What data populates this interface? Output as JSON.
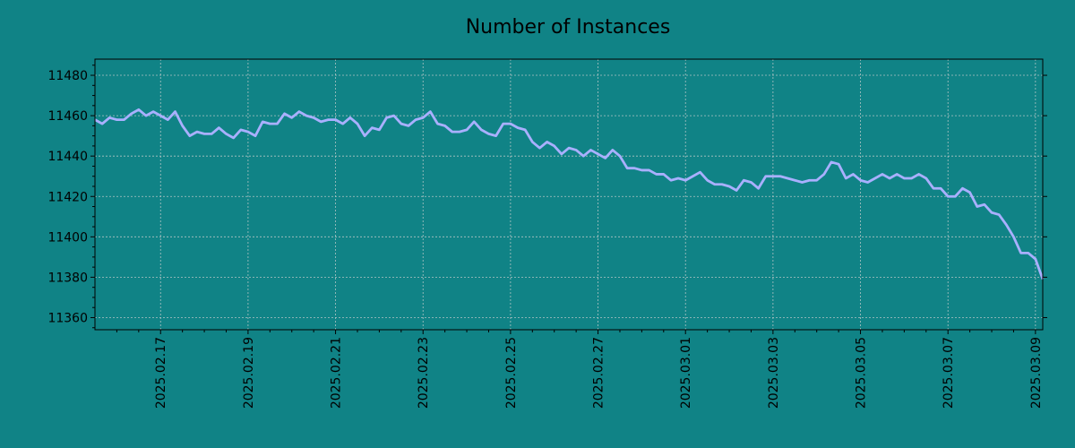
{
  "chart_data": {
    "type": "line",
    "title": "Number of Instances",
    "xlabel": "",
    "ylabel": "",
    "ylim": [
      11354,
      11488
    ],
    "yticks": [
      11360,
      11380,
      11400,
      11420,
      11440,
      11460,
      11480
    ],
    "xticks": [
      "2025.02.17",
      "2025.02.19",
      "2025.02.21",
      "2025.02.23",
      "2025.02.25",
      "2025.02.27",
      "2025.03.01",
      "2025.03.03",
      "2025.03.05",
      "2025.03.07",
      "2025.03.09"
    ],
    "grid": true,
    "x_start": "2025.02.15 12:00",
    "x_step_hours": 4,
    "series": [
      {
        "values": [
          11458,
          11456,
          11459,
          11458,
          11458,
          11461,
          11463,
          11460,
          11462,
          11460,
          11458,
          11462,
          11455,
          11450,
          11452,
          11451,
          11451,
          11454,
          11451,
          11449,
          11453,
          11452,
          11450,
          11457,
          11456,
          11456,
          11461,
          11459,
          11462,
          11460,
          11459,
          11457,
          11458,
          11458,
          11456,
          11459,
          11456,
          11450,
          11454,
          11453,
          11459,
          11460,
          11456,
          11455,
          11458,
          11459,
          11462,
          11456,
          11455,
          11452,
          11452,
          11453,
          11457,
          11453,
          11451,
          11450,
          11456,
          11456,
          11454,
          11453,
          11447,
          11444,
          11447,
          11445,
          11441,
          11444,
          11443,
          11440,
          11443,
          11441,
          11439,
          11443,
          11440,
          11434,
          11434,
          11433,
          11433,
          11431,
          11431,
          11428,
          11429,
          11428,
          11430,
          11432,
          11428,
          11426,
          11426,
          11425,
          11423,
          11428,
          11427,
          11424,
          11430,
          11430,
          11430,
          11429,
          11428,
          11427,
          11428,
          11428,
          11431,
          11437,
          11436,
          11429,
          11431,
          11428,
          11427,
          11429,
          11431,
          11429,
          11431,
          11429,
          11429,
          11431,
          11429,
          11424,
          11424,
          11420,
          11420,
          11424,
          11422,
          11415,
          11416,
          11412,
          11411,
          11406,
          11400,
          11392,
          11392,
          11389,
          11379
        ]
      }
    ]
  },
  "colors": {
    "background": "#108386",
    "line": "#a9b0ff",
    "axis": "#000000",
    "grid": "#b0c4c4"
  }
}
